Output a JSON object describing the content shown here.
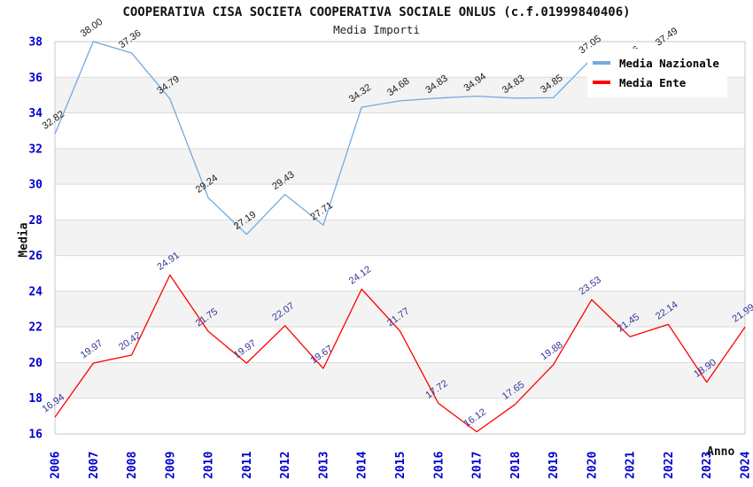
{
  "page": {
    "title": "COOPERATIVA CISA SOCIETA COOPERATIVA SOCIALE ONLUS (c.f.01999840406)",
    "subtitle": "Media Importi"
  },
  "legend": {
    "items": [
      {
        "label": "Media Nazionale",
        "color": "#74a9dd"
      },
      {
        "label": "Media Ente",
        "color": "#ff0000"
      }
    ]
  },
  "axes": {
    "y_title": "Media",
    "x_title": "Anno"
  },
  "chart_data": {
    "type": "line",
    "title": "COOPERATIVA CISA SOCIETA COOPERATIVA SOCIALE ONLUS (c.f.01999840406)",
    "subtitle": "Media Importi",
    "xlabel": "Anno",
    "ylabel": "Media",
    "categories": [
      "2006",
      "2007",
      "2008",
      "2009",
      "2010",
      "2011",
      "2012",
      "2013",
      "2014",
      "2015",
      "2016",
      "2017",
      "2018",
      "2019",
      "2020",
      "2021",
      "2022",
      "2023",
      "2024"
    ],
    "ylim": [
      16,
      38
    ],
    "yticks": [
      16,
      18,
      20,
      22,
      24,
      26,
      28,
      30,
      32,
      34,
      36,
      38
    ],
    "grid": true,
    "band_ranges": [
      [
        18,
        20
      ],
      [
        22,
        24
      ],
      [
        26,
        28
      ],
      [
        30,
        32
      ],
      [
        34,
        36
      ]
    ],
    "legend_position": "top-right",
    "series": [
      {
        "name": "Media Nazionale",
        "color": "#74a9dd",
        "label_color": "#1a1a1a",
        "values": [
          32.82,
          38.0,
          37.36,
          34.79,
          29.24,
          27.19,
          29.43,
          27.71,
          34.32,
          34.68,
          34.83,
          34.94,
          34.83,
          34.85,
          37.05,
          36.46,
          37.49,
          null,
          null
        ]
      },
      {
        "name": "Media Ente",
        "color": "#ff0000",
        "label_color": "#333399",
        "values": [
          16.94,
          19.97,
          20.42,
          24.91,
          21.75,
          19.97,
          22.07,
          19.67,
          24.12,
          21.77,
          17.72,
          16.12,
          17.65,
          19.88,
          23.53,
          21.45,
          22.14,
          18.9,
          21.99
        ]
      }
    ],
    "colors": {
      "tick_label": "#0000cd",
      "band": "#f3f3f3",
      "gridline": "#dcdcdc",
      "plot_border": "#c8c8c8"
    }
  }
}
